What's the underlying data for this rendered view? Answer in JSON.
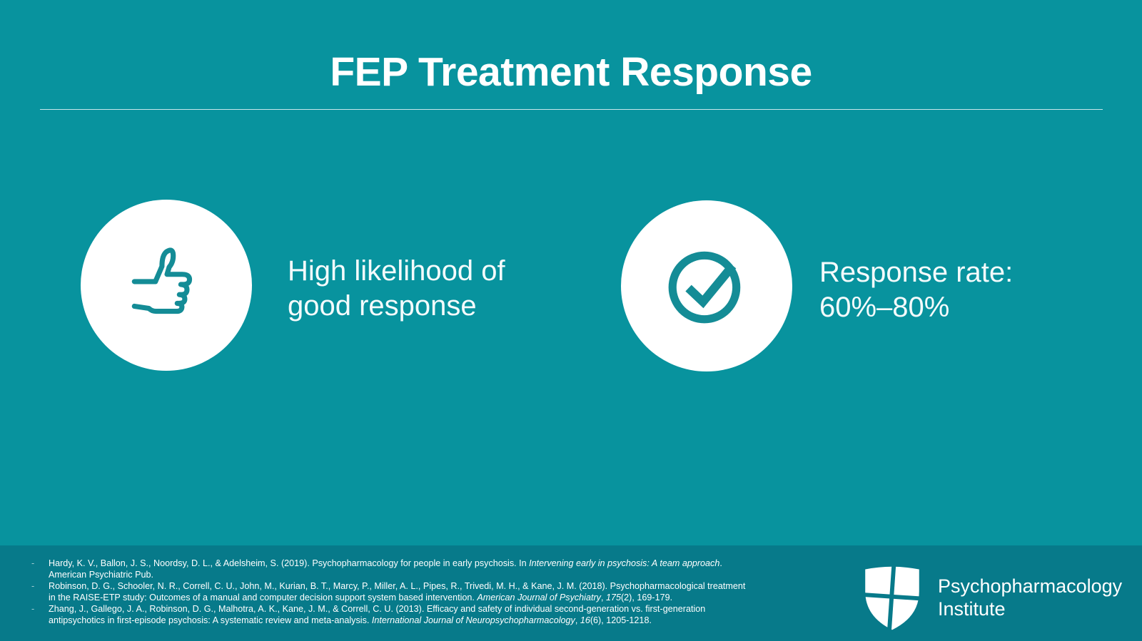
{
  "colors": {
    "background": "#08939e",
    "footer_background": "#077a8a",
    "icon_teal": "#148c96",
    "text_white": "#ffffff"
  },
  "header": {
    "title": "FEP Treatment Response"
  },
  "items": [
    {
      "icon": "thumbs-up-icon",
      "line1": "High likelihood of",
      "line2": "good response"
    },
    {
      "icon": "check-circle-icon",
      "line1": "Response rate:",
      "line2": "60%–80%"
    }
  ],
  "references": [
    {
      "bullet": "-",
      "segments": [
        {
          "text": "Hardy, K. V., Ballon, J. S., Noordsy, D. L., & Adelsheim, S. (2019). Psychopharmacology for people in early psychosis. In ",
          "italic": false
        },
        {
          "text": "Intervening early in psychosis: A team approach",
          "italic": true
        },
        {
          "text": ". American Psychiatric Pub.",
          "italic": false
        }
      ]
    },
    {
      "bullet": "-",
      "segments": [
        {
          "text": "Robinson, D. G., Schooler, N. R., Correll, C. U., John, M., Kurian, B. T., Marcy, P., Miller, A. L., Pipes, R., Trivedi, M. H., & Kane, J. M. (2018). Psychopharmacological treatment in the RAISE-ETP study: Outcomes of a manual and computer decision support system based intervention. ",
          "italic": false
        },
        {
          "text": "American Journal of Psychiatry",
          "italic": true
        },
        {
          "text": ", ",
          "italic": false
        },
        {
          "text": "175",
          "italic": true
        },
        {
          "text": "(2), 169-179.",
          "italic": false
        }
      ]
    },
    {
      "bullet": "-",
      "segments": [
        {
          "text": "Zhang, J., Gallego, J. A., Robinson, D. G., Malhotra, A. K., Kane, J. M., & Correll, C. U. (2013). Efficacy and safety of individual second-generation vs. first-generation antipsychotics in first-episode psychosis: A systematic review and meta-analysis. ",
          "italic": false
        },
        {
          "text": "International Journal of Neuropsychopharmacology",
          "italic": true
        },
        {
          "text": ", ",
          "italic": false
        },
        {
          "text": "16",
          "italic": true
        },
        {
          "text": "(6), 1205-1218.",
          "italic": false
        }
      ]
    }
  ],
  "logo": {
    "line1": "Psychopharmacology",
    "line2": "Institute"
  }
}
